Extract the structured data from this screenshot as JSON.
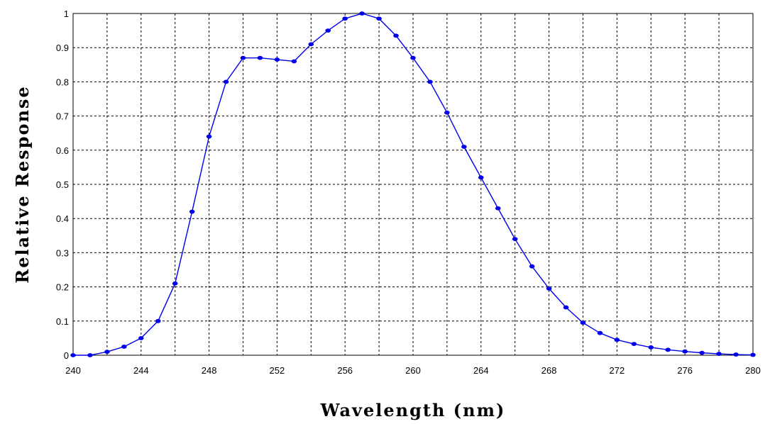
{
  "colors": {
    "series": "#0000ee",
    "grid": "#000000",
    "background": "#ffffff"
  },
  "chart_data": {
    "type": "line",
    "title": "",
    "xlabel": "Wavelength (nm)",
    "ylabel": "Relative Response",
    "xlim": [
      240,
      280
    ],
    "ylim": [
      0,
      1
    ],
    "x_ticks": [
      "240",
      "244",
      "248",
      "252",
      "256",
      "260",
      "264",
      "268",
      "272",
      "276",
      "280"
    ],
    "y_ticks": [
      "0",
      "0.1",
      "0.2",
      "0.3",
      "0.4",
      "0.5",
      "0.6",
      "0.7",
      "0.8",
      "0.9",
      "1"
    ],
    "x_grid_step": 2,
    "y_grid_step": 0.1,
    "grid": true,
    "markers": true,
    "series": [
      {
        "x": [
          240,
          241,
          242,
          243,
          244,
          245,
          246,
          247,
          248,
          249,
          250,
          251,
          252,
          253,
          254,
          255,
          256,
          257,
          258,
          259,
          260,
          261,
          262,
          263,
          264,
          265,
          266,
          267,
          268,
          269,
          270,
          271,
          272,
          273,
          274,
          275,
          276,
          277,
          278,
          279,
          280
        ],
        "y": [
          0.0,
          0.0,
          0.01,
          0.025,
          0.05,
          0.1,
          0.21,
          0.42,
          0.64,
          0.8,
          0.87,
          0.87,
          0.865,
          0.86,
          0.91,
          0.95,
          0.985,
          1.0,
          0.985,
          0.935,
          0.87,
          0.8,
          0.71,
          0.61,
          0.52,
          0.43,
          0.34,
          0.26,
          0.195,
          0.14,
          0.095,
          0.065,
          0.045,
          0.033,
          0.023,
          0.016,
          0.011,
          0.007,
          0.004,
          0.002,
          0.001
        ]
      }
    ]
  }
}
